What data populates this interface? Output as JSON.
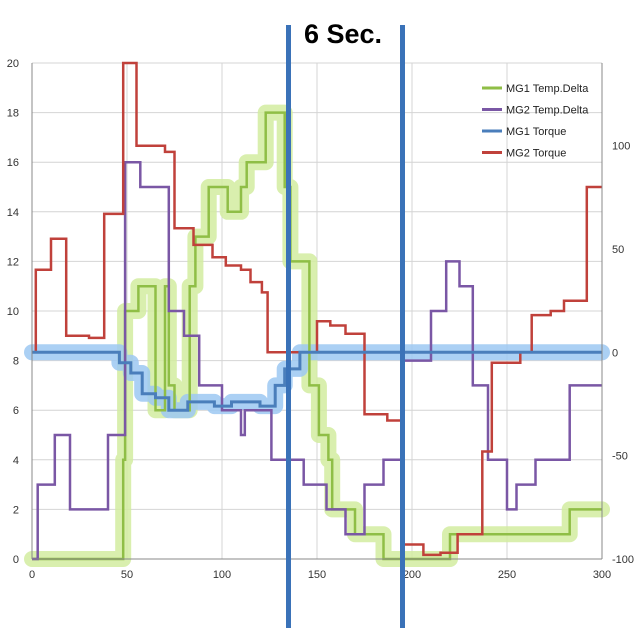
{
  "chart_data": {
    "type": "line",
    "annotation": "6 Sec.",
    "marker_lines_x": [
      135,
      195
    ],
    "xlim": [
      0,
      300
    ],
    "x_ticks": [
      0,
      50,
      100,
      150,
      200,
      250,
      300
    ],
    "ylim_left": [
      0,
      20
    ],
    "y_ticks_left": [
      0,
      2,
      4,
      6,
      8,
      10,
      12,
      14,
      16,
      18,
      20
    ],
    "ylim_right": [
      -100,
      140
    ],
    "y_ticks_right": [
      -100,
      -50,
      0,
      50,
      100
    ],
    "grid": true,
    "legend_position": "top-right",
    "colors": {
      "mg1_temp": "#8fbe46",
      "mg2_temp": "#7a57a5",
      "mg1_torque": "#4a7ebb",
      "mg2_torque": "#c0413b",
      "marker_line": "#3a72b8",
      "grid": "#d4d4d4",
      "glow_green": "#d2eca0",
      "glow_blue": "#9cc8f2"
    },
    "series": [
      {
        "name": "MG1 Temp.Delta",
        "axis": "left",
        "points": [
          [
            0,
            0
          ],
          [
            48,
            0
          ],
          [
            48,
            4
          ],
          [
            49,
            4
          ],
          [
            49,
            10
          ],
          [
            56,
            10
          ],
          [
            56,
            11
          ],
          [
            58,
            11
          ],
          [
            58,
            11
          ],
          [
            65,
            11
          ],
          [
            65,
            6
          ],
          [
            70,
            6
          ],
          [
            70,
            11
          ],
          [
            72,
            11
          ],
          [
            72,
            7
          ],
          [
            75,
            7
          ],
          [
            75,
            6
          ],
          [
            83,
            6
          ],
          [
            83,
            11
          ],
          [
            86,
            11
          ],
          [
            86,
            13
          ],
          [
            93,
            13
          ],
          [
            93,
            15
          ],
          [
            103,
            15
          ],
          [
            103,
            14
          ],
          [
            110,
            14
          ],
          [
            110,
            15
          ],
          [
            113,
            15
          ],
          [
            113,
            16
          ],
          [
            123,
            16
          ],
          [
            123,
            18
          ],
          [
            133,
            18
          ],
          [
            133,
            15
          ],
          [
            136,
            15
          ],
          [
            136,
            12
          ],
          [
            146,
            12
          ],
          [
            146,
            7
          ],
          [
            151,
            7
          ],
          [
            151,
            5
          ],
          [
            156,
            5
          ],
          [
            156,
            4
          ],
          [
            158,
            4
          ],
          [
            158,
            2
          ],
          [
            162,
            2
          ],
          [
            162,
            2
          ],
          [
            170,
            2
          ],
          [
            170,
            1
          ],
          [
            181,
            1
          ],
          [
            181,
            1
          ],
          [
            185,
            1
          ],
          [
            185,
            0
          ],
          [
            220,
            0
          ],
          [
            220,
            1
          ],
          [
            230,
            1
          ],
          [
            230,
            1
          ],
          [
            283,
            1
          ],
          [
            283,
            2
          ],
          [
            300,
            2
          ]
        ]
      },
      {
        "name": "MG2 Temp.Delta",
        "axis": "left",
        "points": [
          [
            0,
            0
          ],
          [
            3,
            0
          ],
          [
            3,
            3
          ],
          [
            12,
            3
          ],
          [
            12,
            5
          ],
          [
            20,
            5
          ],
          [
            20,
            2
          ],
          [
            40,
            2
          ],
          [
            40,
            5
          ],
          [
            49,
            5
          ],
          [
            49,
            16
          ],
          [
            57,
            16
          ],
          [
            57,
            15
          ],
          [
            72,
            15
          ],
          [
            72,
            10
          ],
          [
            80,
            10
          ],
          [
            80,
            9
          ],
          [
            88,
            9
          ],
          [
            88,
            7
          ],
          [
            95,
            7
          ],
          [
            95,
            7
          ],
          [
            100,
            7
          ],
          [
            100,
            6
          ],
          [
            110,
            6
          ],
          [
            110,
            5
          ],
          [
            112,
            5
          ],
          [
            112,
            6
          ],
          [
            126,
            6
          ],
          [
            126,
            4
          ],
          [
            143,
            4
          ],
          [
            143,
            3
          ],
          [
            155,
            3
          ],
          [
            155,
            2
          ],
          [
            165,
            2
          ],
          [
            165,
            1
          ],
          [
            175,
            1
          ],
          [
            175,
            3
          ],
          [
            185,
            3
          ],
          [
            185,
            4
          ],
          [
            195,
            4
          ],
          [
            195,
            8
          ],
          [
            210,
            8
          ],
          [
            210,
            10
          ],
          [
            218,
            10
          ],
          [
            218,
            12
          ],
          [
            225,
            12
          ],
          [
            225,
            11
          ],
          [
            232,
            11
          ],
          [
            232,
            7
          ],
          [
            240,
            7
          ],
          [
            240,
            4
          ],
          [
            250,
            4
          ],
          [
            250,
            2
          ],
          [
            255,
            2
          ],
          [
            255,
            3
          ],
          [
            265,
            3
          ],
          [
            265,
            4
          ],
          [
            283,
            4
          ],
          [
            283,
            7
          ],
          [
            300,
            7
          ]
        ]
      },
      {
        "name": "MG1 Torque",
        "axis": "right",
        "points": [
          [
            0,
            0
          ],
          [
            46,
            0
          ],
          [
            46,
            -5
          ],
          [
            52,
            -5
          ],
          [
            52,
            -10
          ],
          [
            58,
            -10
          ],
          [
            58,
            -20
          ],
          [
            65,
            -20
          ],
          [
            65,
            -22
          ],
          [
            72,
            -22
          ],
          [
            72,
            -28
          ],
          [
            82,
            -28
          ],
          [
            82,
            -24
          ],
          [
            96,
            -24
          ],
          [
            96,
            -26
          ],
          [
            105,
            -26
          ],
          [
            105,
            -24
          ],
          [
            120,
            -24
          ],
          [
            120,
            -26
          ],
          [
            128,
            -26
          ],
          [
            128,
            -16
          ],
          [
            133,
            -16
          ],
          [
            133,
            -8
          ],
          [
            141,
            -8
          ],
          [
            141,
            0
          ],
          [
            300,
            0
          ]
        ]
      },
      {
        "name": "MG2 Torque",
        "axis": "right",
        "points": [
          [
            0,
            0
          ],
          [
            2,
            0
          ],
          [
            2,
            40
          ],
          [
            10,
            40
          ],
          [
            10,
            55
          ],
          [
            18,
            55
          ],
          [
            18,
            8
          ],
          [
            30,
            8
          ],
          [
            30,
            7
          ],
          [
            38,
            7
          ],
          [
            38,
            67
          ],
          [
            48,
            67
          ],
          [
            48,
            140
          ],
          [
            55,
            140
          ],
          [
            55,
            100
          ],
          [
            65,
            100
          ],
          [
            65,
            100
          ],
          [
            70,
            100
          ],
          [
            70,
            97
          ],
          [
            75,
            97
          ],
          [
            75,
            60
          ],
          [
            85,
            60
          ],
          [
            85,
            52
          ],
          [
            95,
            52
          ],
          [
            95,
            46
          ],
          [
            102,
            46
          ],
          [
            102,
            42
          ],
          [
            110,
            42
          ],
          [
            110,
            40
          ],
          [
            115,
            40
          ],
          [
            115,
            34
          ],
          [
            121,
            34
          ],
          [
            121,
            29
          ],
          [
            124,
            29
          ],
          [
            124,
            0
          ],
          [
            133,
            0
          ],
          [
            133,
            0
          ],
          [
            150,
            0
          ],
          [
            150,
            15
          ],
          [
            157,
            15
          ],
          [
            157,
            13
          ],
          [
            165,
            13
          ],
          [
            165,
            9
          ],
          [
            175,
            9
          ],
          [
            175,
            -30
          ],
          [
            187,
            -30
          ],
          [
            187,
            -33
          ],
          [
            195,
            -33
          ],
          [
            195,
            -93
          ],
          [
            206,
            -93
          ],
          [
            206,
            -98
          ],
          [
            215,
            -98
          ],
          [
            215,
            -97
          ],
          [
            224,
            -97
          ],
          [
            224,
            -88
          ],
          [
            237,
            -88
          ],
          [
            237,
            -48
          ],
          [
            242,
            -48
          ],
          [
            242,
            -5
          ],
          [
            257,
            -5
          ],
          [
            257,
            0
          ],
          [
            263,
            0
          ],
          [
            263,
            18
          ],
          [
            273,
            18
          ],
          [
            273,
            20
          ],
          [
            280,
            20
          ],
          [
            280,
            25
          ],
          [
            292,
            25
          ],
          [
            292,
            80
          ],
          [
            300,
            80
          ]
        ]
      }
    ]
  }
}
